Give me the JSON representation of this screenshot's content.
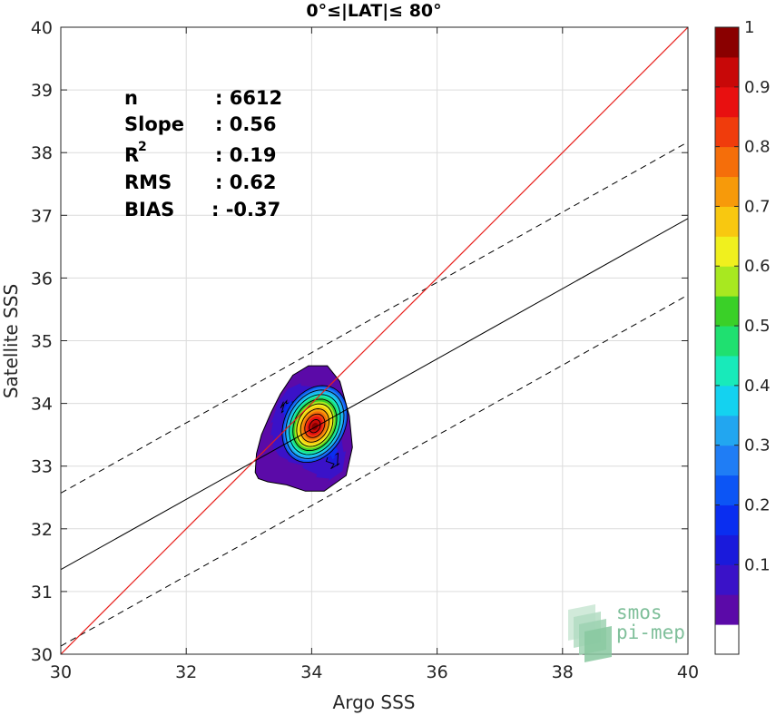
{
  "chart_data": {
    "type": "scatter",
    "title": "0°≤|LAT|≤ 80°",
    "xlabel": "Argo SSS",
    "ylabel": "Satellite SSS",
    "xlim": [
      30,
      40
    ],
    "ylim": [
      30,
      40
    ],
    "x_ticks": [
      "30",
      "32",
      "34",
      "36",
      "38",
      "40"
    ],
    "y_ticks": [
      "30",
      "31",
      "32",
      "33",
      "34",
      "35",
      "36",
      "37",
      "38",
      "39",
      "40"
    ],
    "grid": true,
    "stats": [
      {
        "label": "n",
        "value": ": 6612"
      },
      {
        "label": "Slope",
        "value": ": 0.56"
      },
      {
        "label": "R",
        "sup": "2",
        "value": ": 0.19"
      },
      {
        "label": "RMS",
        "value": ": 0.62"
      },
      {
        "label": "BIAS",
        "value": ": -0.37"
      }
    ],
    "lines": {
      "identity": {
        "color": "#e8201c",
        "x": [
          30,
          40
        ],
        "y": [
          30,
          40
        ]
      },
      "regression": {
        "color": "#000000",
        "x": [
          30,
          40
        ],
        "y": [
          31.35,
          36.95
        ]
      },
      "regression_upper": {
        "style": "dashed",
        "x": [
          30,
          40
        ],
        "y": [
          32.57,
          38.17
        ]
      },
      "regression_lower": {
        "style": "dashed",
        "x": [
          30,
          40
        ],
        "y": [
          30.13,
          35.73
        ]
      }
    },
    "density": {
      "center": [
        34.05,
        33.68
      ],
      "angle_deg": 62,
      "base_spread": [
        0.78,
        0.58
      ],
      "outer_contour": [
        [
          33.1,
          32.9
        ],
        [
          33.12,
          33.2
        ],
        [
          33.2,
          33.5
        ],
        [
          33.35,
          33.85
        ],
        [
          33.5,
          34.15
        ],
        [
          33.7,
          34.45
        ],
        [
          33.95,
          34.6
        ],
        [
          34.25,
          34.6
        ],
        [
          34.45,
          34.35
        ],
        [
          34.6,
          33.8
        ],
        [
          34.65,
          33.3
        ],
        [
          34.55,
          32.85
        ],
        [
          34.2,
          32.6
        ],
        [
          33.9,
          32.6
        ],
        [
          33.6,
          32.7
        ],
        [
          33.3,
          32.75
        ],
        [
          33.15,
          32.8
        ]
      ],
      "levels": [
        0.05,
        0.1,
        0.15,
        0.2,
        0.25,
        0.3,
        0.35,
        0.4,
        0.45,
        0.5,
        0.55,
        0.6,
        0.65,
        0.7,
        0.75,
        0.8,
        0.85,
        0.9,
        0.95,
        1
      ]
    },
    "colorbar": {
      "ticks": [
        "0.1",
        "0.2",
        "0.3",
        "0.4",
        "0.5",
        "0.6",
        "0.7",
        "0.8",
        "0.9",
        "1"
      ],
      "tick_values": [
        0.1,
        0.2,
        0.3,
        0.4,
        0.5,
        0.6,
        0.7,
        0.8,
        0.9,
        1.0
      ],
      "colors": [
        "#ffffff",
        "#5b0aa8",
        "#3a12c8",
        "#1a1adb",
        "#0a2ef0",
        "#0c55f5",
        "#1f7df5",
        "#22a6f0",
        "#14d2f0",
        "#18eaba",
        "#1fe070",
        "#3ad028",
        "#a8e820",
        "#f0f01e",
        "#f8c810",
        "#f79a0a",
        "#f56e0a",
        "#f03c0c",
        "#e81010",
        "#c80808",
        "#8a0000"
      ]
    },
    "watermark": [
      "smos",
      "pi-mep"
    ]
  }
}
